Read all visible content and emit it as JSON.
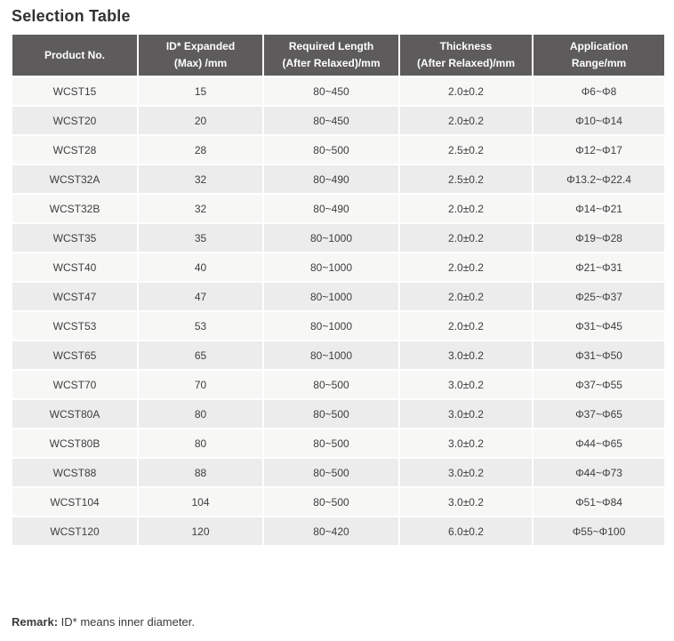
{
  "page": {
    "title": "Selection Table",
    "remark_label": "Remark:",
    "remark_text": " ID* means inner diameter."
  },
  "colors": {
    "header_bg": "#5d5b5b",
    "header_text": "#ffffff",
    "row_odd_bg": "#f7f7f6",
    "row_even_bg": "#ececec",
    "cell_text": "#3f3d3d",
    "title_text": "#333030"
  },
  "table": {
    "headers": [
      [
        "Product No."
      ],
      [
        "ID* Expanded",
        "(Max) /mm"
      ],
      [
        "Required Length",
        "(After Relaxed)/mm"
      ],
      [
        "Thickness",
        "(After Relaxed)/mm"
      ],
      [
        "Application",
        "Range/mm"
      ]
    ],
    "rows": [
      [
        "WCST15",
        "15",
        "80~450",
        "2.0±0.2",
        "Φ6~Φ8"
      ],
      [
        "WCST20",
        "20",
        "80~450",
        "2.0±0.2",
        "Φ10~Φ14"
      ],
      [
        "WCST28",
        "28",
        "80~500",
        "2.5±0.2",
        "Φ12~Φ17"
      ],
      [
        "WCST32A",
        "32",
        "80~490",
        "2.5±0.2",
        "Φ13.2~Φ22.4"
      ],
      [
        "WCST32B",
        "32",
        "80~490",
        "2.0±0.2",
        "Φ14~Φ21"
      ],
      [
        "WCST35",
        "35",
        "80~1000",
        "2.0±0.2",
        "Φ19~Φ28"
      ],
      [
        "WCST40",
        "40",
        "80~1000",
        "2.0±0.2",
        "Φ21~Φ31"
      ],
      [
        "WCST47",
        "47",
        "80~1000",
        "2.0±0.2",
        "Φ25~Φ37"
      ],
      [
        "WCST53",
        "53",
        "80~1000",
        "2.0±0.2",
        "Φ31~Φ45"
      ],
      [
        "WCST65",
        "65",
        "80~1000",
        "3.0±0.2",
        "Φ31~Φ50"
      ],
      [
        "WCST70",
        "70",
        "80~500",
        "3.0±0.2",
        "Φ37~Φ55"
      ],
      [
        "WCST80A",
        "80",
        "80~500",
        "3.0±0.2",
        "Φ37~Φ65"
      ],
      [
        "WCST80B",
        "80",
        "80~500",
        "3.0±0.2",
        "Φ44~Φ65"
      ],
      [
        "WCST88",
        "88",
        "80~500",
        "3.0±0.2",
        "Φ44~Φ73"
      ],
      [
        "WCST104",
        "104",
        "80~500",
        "3.0±0.2",
        "Φ51~Φ84"
      ],
      [
        "WCST120",
        "120",
        "80~420",
        "6.0±0.2",
        "Φ55~Φ100"
      ]
    ]
  }
}
